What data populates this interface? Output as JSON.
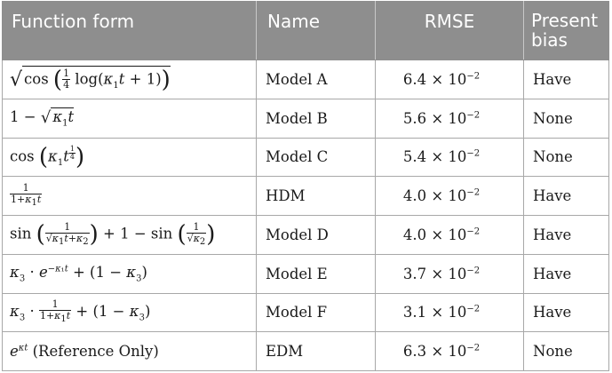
{
  "headers": [
    "Function form",
    "Name",
    "RMSE",
    "Present bias"
  ],
  "header_line1_bias": "Present",
  "header_line2_bias": "bias",
  "rows": [
    {
      "name": "Model A",
      "rmse": "6.4 × 10",
      "exp": "−2",
      "bias": "Have"
    },
    {
      "name": "Model B",
      "rmse": "5.6 × 10",
      "exp": "−2",
      "bias": "None"
    },
    {
      "name": "Model C",
      "rmse": "5.4 × 10",
      "exp": "−2",
      "bias": "None"
    },
    {
      "name": "HDM",
      "rmse": "4.0 × 10",
      "exp": "−2",
      "bias": "Have"
    },
    {
      "name": "Model D",
      "rmse": "4.0 × 10",
      "exp": "−2",
      "bias": "Have"
    },
    {
      "name": "Model E",
      "rmse": "3.7 × 10",
      "exp": "−2",
      "bias": "Have"
    },
    {
      "name": "Model F",
      "rmse": "3.1 × 10",
      "exp": "−2",
      "bias": "Have"
    },
    {
      "name": "EDM",
      "rmse": "6.3 × 10",
      "exp": "−2",
      "bias": "None"
    }
  ],
  "edm_note": "(Reference Only)"
}
